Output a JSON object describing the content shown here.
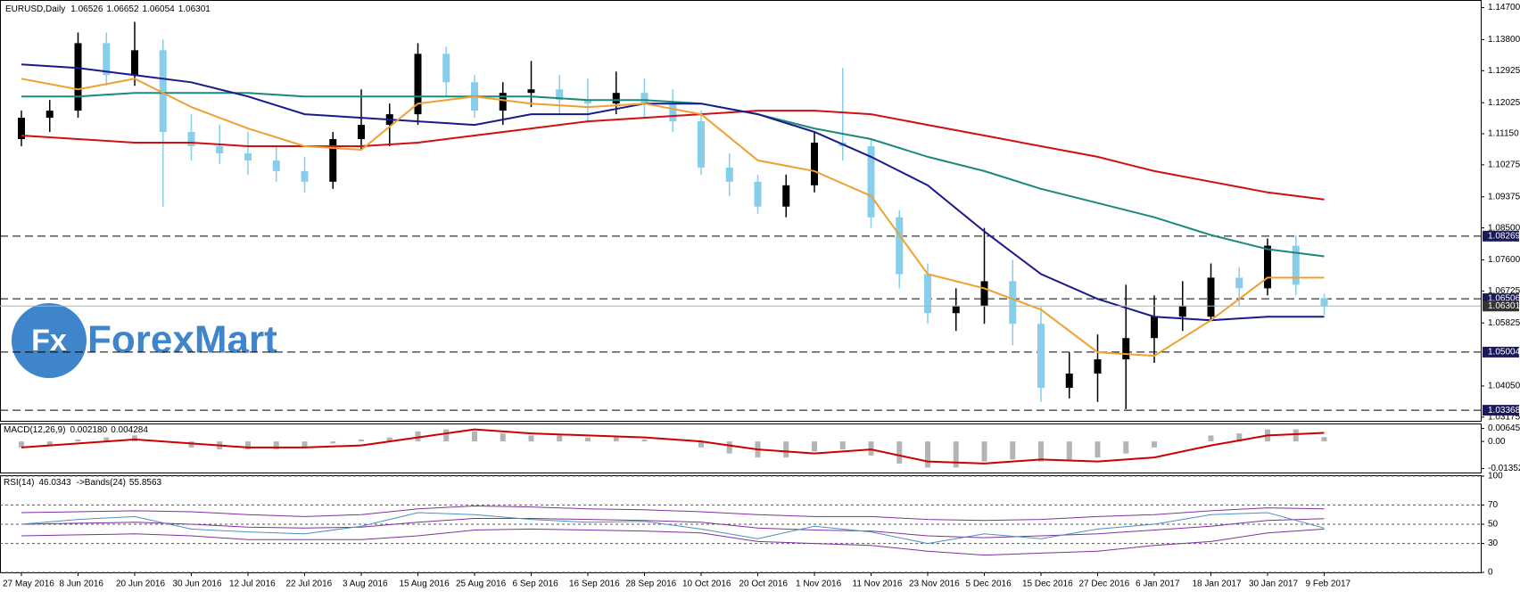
{
  "chart_data": {
    "type": "candlestick",
    "title": "EURUSD,Daily",
    "watermark_icon": "Fx",
    "watermark_text": "ForexMart",
    "x_labels": [
      "27 May 2016",
      "8 Jun 2016",
      "20 Jun 2016",
      "30 Jun 2016",
      "12 Jul 2016",
      "22 Jul 2016",
      "3 Aug 2016",
      "15 Aug 2016",
      "25 Aug 2016",
      "6 Sep 2016",
      "16 Sep 2016",
      "28 Sep 2016",
      "10 Oct 2016",
      "20 Oct 2016",
      "1 Nov 2016",
      "11 Nov 2016",
      "23 Nov 2016",
      "5 Dec 2016",
      "15 Dec 2016",
      "27 Dec 2016",
      "6 Jan 2017",
      "18 Jan 2017",
      "30 Jan 2017",
      "9 Feb 2017"
    ],
    "candles": {
      "bull_color": "#000000",
      "bear_color": "#87ceeb",
      "open": [
        1.11,
        1.116,
        1.118,
        1.137,
        1.128,
        1.135,
        1.112,
        1.108,
        1.106,
        1.104,
        1.101,
        1.098,
        1.11,
        1.114,
        1.117,
        1.134,
        1.126,
        1.118,
        1.123,
        1.124,
        1.121,
        1.12,
        1.123,
        1.12,
        1.115,
        1.102,
        1.098,
        1.091,
        1.097,
        1.109,
        1.108,
        1.088,
        1.072,
        1.061,
        1.063,
        1.07,
        1.058,
        1.04,
        1.044,
        1.048,
        1.054,
        1.06,
        1.06,
        1.071,
        1.068,
        1.08,
        1.06526
      ],
      "high": [
        1.118,
        1.121,
        1.14,
        1.14,
        1.143,
        1.138,
        1.117,
        1.114,
        1.112,
        1.108,
        1.105,
        1.112,
        1.124,
        1.12,
        1.137,
        1.136,
        1.128,
        1.126,
        1.132,
        1.128,
        1.127,
        1.129,
        1.127,
        1.124,
        1.118,
        1.106,
        1.1,
        1.1,
        1.112,
        1.13,
        1.11,
        1.09,
        1.075,
        1.068,
        1.085,
        1.076,
        1.063,
        1.05,
        1.055,
        1.069,
        1.066,
        1.07,
        1.075,
        1.074,
        1.082,
        1.083,
        1.06652
      ],
      "low": [
        1.108,
        1.112,
        1.116,
        1.125,
        1.125,
        1.091,
        1.104,
        1.103,
        1.1,
        1.098,
        1.095,
        1.096,
        1.107,
        1.108,
        1.114,
        1.122,
        1.116,
        1.114,
        1.119,
        1.117,
        1.115,
        1.117,
        1.116,
        1.112,
        1.1,
        1.094,
        1.089,
        1.088,
        1.095,
        1.104,
        1.085,
        1.068,
        1.058,
        1.056,
        1.058,
        1.052,
        1.036,
        1.037,
        1.036,
        1.034,
        1.047,
        1.056,
        1.059,
        1.063,
        1.066,
        1.066,
        1.06054
      ],
      "close": [
        1.116,
        1.118,
        1.137,
        1.128,
        1.135,
        1.112,
        1.108,
        1.106,
        1.104,
        1.101,
        1.098,
        1.11,
        1.114,
        1.117,
        1.134,
        1.126,
        1.118,
        1.123,
        1.124,
        1.121,
        1.12,
        1.123,
        1.12,
        1.115,
        1.102,
        1.098,
        1.091,
        1.097,
        1.109,
        1.108,
        1.088,
        1.072,
        1.061,
        1.063,
        1.07,
        1.058,
        1.04,
        1.044,
        1.048,
        1.054,
        1.06,
        1.063,
        1.071,
        1.068,
        1.08,
        1.069,
        1.06301
      ]
    },
    "series": [
      {
        "color": "#d01010",
        "values": [
          1.111,
          1.11,
          1.109,
          1.109,
          1.108,
          1.108,
          1.108,
          1.109,
          1.111,
          1.113,
          1.115,
          1.116,
          1.117,
          1.118,
          1.118,
          1.117,
          1.114,
          1.111,
          1.108,
          1.105,
          1.101,
          1.098,
          1.095,
          1.093
        ]
      },
      {
        "color": "#1a8a7a",
        "values": [
          1.122,
          1.122,
          1.123,
          1.123,
          1.123,
          1.122,
          1.122,
          1.122,
          1.122,
          1.122,
          1.121,
          1.121,
          1.12,
          1.117,
          1.113,
          1.11,
          1.105,
          1.101,
          1.096,
          1.092,
          1.088,
          1.083,
          1.079,
          1.077
        ]
      },
      {
        "color": "#1a1a8c",
        "values": [
          1.131,
          1.13,
          1.128,
          1.126,
          1.122,
          1.117,
          1.116,
          1.115,
          1.114,
          1.117,
          1.117,
          1.12,
          1.12,
          1.117,
          1.112,
          1.105,
          1.097,
          1.084,
          1.072,
          1.065,
          1.06,
          1.059,
          1.06,
          1.06
        ]
      },
      {
        "color": "#f0a030",
        "values": [
          1.127,
          1.124,
          1.127,
          1.119,
          1.113,
          1.108,
          1.107,
          1.12,
          1.122,
          1.12,
          1.119,
          1.12,
          1.117,
          1.104,
          1.101,
          1.094,
          1.072,
          1.068,
          1.062,
          1.05,
          1.049,
          1.059,
          1.071,
          1.071
        ]
      }
    ],
    "ylim": [
      1.0307,
      1.1489
    ],
    "yticks": [
      {
        "value": 1.147,
        "label": "1.14700"
      },
      {
        "value": 1.138,
        "label": "1.13800"
      },
      1.12925,
      {
        "value": 1.12025,
        "label": "1.12025"
      },
      {
        "value": 1.1115,
        "label": "1.11150"
      },
      1.10275,
      1.09375,
      {
        "value": 1.085,
        "label": "1.08500"
      },
      {
        "value": 1.076,
        "label": "1.07600"
      },
      1.06725,
      1.05825,
      {
        "value": 1.0405,
        "label": "1.04050"
      },
      1.03175
    ],
    "levels": [
      1.08269,
      1.06506,
      1.05004,
      1.03368
    ],
    "macd": {
      "title": "MACD(12,26,9)",
      "readout_label": "0.002180",
      "histogram_color": "#b4b4b4",
      "signal_color": "#cc0000",
      "histogram": [
        -0.003,
        -0.002,
        0.001,
        0.002,
        0.003,
        0,
        -0.003,
        -0.004,
        -0.004,
        -0.004,
        -0.003,
        -0.001,
        0.001,
        0.002,
        0.005,
        0.006,
        0.005,
        0.004,
        0.003,
        0.003,
        0.002,
        0.002,
        0.001,
        0,
        -0.003,
        -0.006,
        -0.008,
        -0.008,
        -0.005,
        -0.004,
        -0.007,
        -0.011,
        -0.013,
        -0.013,
        -0.01,
        -0.009,
        -0.01,
        -0.009,
        -0.008,
        -0.006,
        -0.003,
        0,
        0.003,
        0.004,
        0.006,
        0.006,
        0.00218
      ],
      "signal": [
        -0.003,
        -0.001,
        0.001,
        -0.001,
        -0.003,
        -0.003,
        -0.002,
        0.002,
        0.006,
        0.004,
        0.003,
        0.002,
        0,
        -0.004,
        -0.006,
        -0.004,
        -0.01,
        -0.011,
        -0.009,
        -0.01,
        -0.008,
        -0.002,
        0.003,
        0.004284
      ],
      "ylim": [
        -0.0155,
        0.0085
      ],
      "yticks": [
        0.006457,
        {
          "value": 0,
          "label": "0.00"
        },
        -0.01352
      ]
    },
    "rsi": {
      "title": "RSI(14)",
      "bands_title": "->Bands(24)",
      "line_color": "#4a90c0",
      "band_color": "#8030a0",
      "values": [
        50,
        55,
        58,
        45,
        42,
        40,
        48,
        62,
        60,
        55,
        52,
        53,
        45,
        35,
        48,
        42,
        30,
        40,
        35,
        45,
        50,
        60,
        62,
        46.0343
      ],
      "band_mid": [
        50,
        51,
        52,
        50,
        47,
        46,
        47,
        52,
        56,
        56,
        55,
        54,
        52,
        46,
        44,
        43,
        38,
        36,
        38,
        40,
        44,
        48,
        54,
        55.8563
      ],
      "band_upper": [
        62,
        63,
        64,
        63,
        60,
        58,
        60,
        66,
        69,
        68,
        66,
        65,
        63,
        60,
        58,
        58,
        55,
        54,
        55,
        58,
        60,
        64,
        67,
        66
      ],
      "band_lower": [
        38,
        39,
        40,
        38,
        34,
        34,
        34,
        38,
        44,
        45,
        44,
        43,
        41,
        32,
        30,
        28,
        22,
        18,
        20,
        22,
        28,
        32,
        41,
        45
      ],
      "ylim": [
        0,
        100
      ],
      "yticks": [
        100,
        70,
        50,
        30,
        0
      ]
    }
  }
}
